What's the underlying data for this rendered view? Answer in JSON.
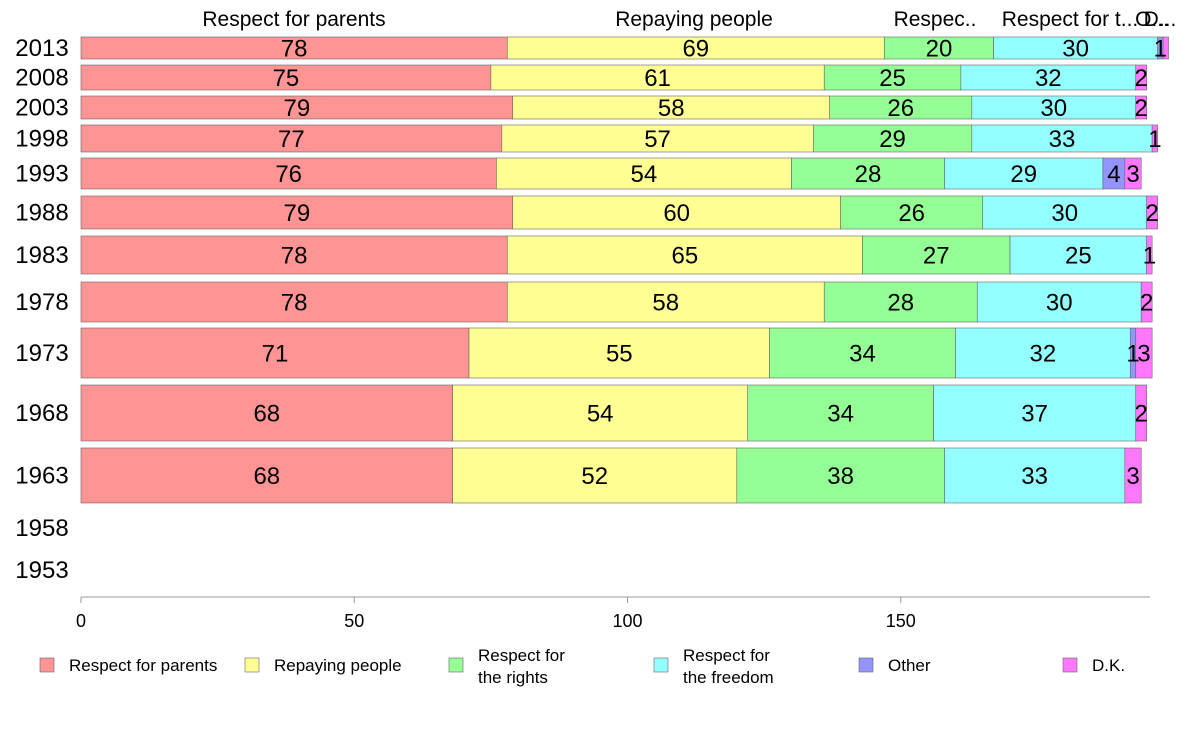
{
  "chart_data": {
    "type": "bar",
    "orientation": "horizontal",
    "stacked": true,
    "categories": [
      "2013",
      "2008",
      "2003",
      "1998",
      "1993",
      "1988",
      "1983",
      "1978",
      "1973",
      "1968",
      "1963",
      "1958",
      "1953"
    ],
    "series": [
      {
        "name": "Respect for parents",
        "color": "#ff9494",
        "values": [
          78,
          75,
          79,
          77,
          76,
          79,
          78,
          78,
          71,
          68,
          68,
          null,
          null
        ]
      },
      {
        "name": "Repaying people",
        "color": "#ffff94",
        "values": [
          69,
          61,
          58,
          57,
          54,
          60,
          65,
          58,
          55,
          54,
          52,
          null,
          null
        ]
      },
      {
        "name": "Respect for the rights",
        "color": "#94ff94",
        "values": [
          20,
          25,
          26,
          29,
          28,
          26,
          27,
          28,
          34,
          34,
          38,
          null,
          null
        ]
      },
      {
        "name": "Respect for the freedom",
        "color": "#94ffff",
        "values": [
          30,
          32,
          30,
          33,
          29,
          30,
          25,
          30,
          32,
          37,
          33,
          null,
          null
        ]
      },
      {
        "name": "Other",
        "color": "#9494ff",
        "values": [
          1,
          0,
          0,
          0,
          4,
          0,
          0,
          0,
          1,
          0,
          0,
          null,
          null
        ]
      },
      {
        "name": "D.K.",
        "color": "#ff77ff",
        "values": [
          1,
          2,
          2,
          1,
          3,
          2,
          1,
          2,
          3,
          2,
          3,
          null,
          null
        ]
      }
    ],
    "segment_labels": [
      [
        "78",
        "69",
        "20",
        "30",
        "1",
        ""
      ],
      [
        "75",
        "61",
        "25",
        "32",
        "",
        "2"
      ],
      [
        "79",
        "58",
        "26",
        "30",
        "",
        "2"
      ],
      [
        "77",
        "57",
        "29",
        "33",
        "",
        "1"
      ],
      [
        "76",
        "54",
        "28",
        "29",
        "4",
        "3"
      ],
      [
        "79",
        "60",
        "26",
        "30",
        "",
        "2"
      ],
      [
        "78",
        "65",
        "27",
        "25",
        "",
        "1"
      ],
      [
        "78",
        "58",
        "28",
        "30",
        "",
        "2"
      ],
      [
        "71",
        "55",
        "34",
        "32",
        "1",
        "3"
      ],
      [
        "68",
        "54",
        "34",
        "37",
        "",
        "2"
      ],
      [
        "68",
        "52",
        "38",
        "33",
        "",
        "3"
      ],
      [
        "",
        "",
        "",
        "",
        "",
        ""
      ],
      [
        "",
        "",
        "",
        "",
        "",
        ""
      ]
    ],
    "top_labels": [
      "Respect for parents",
      "Repaying people",
      "Respec..",
      "Respect for t...",
      "O...",
      "D..."
    ],
    "x_ticks": [
      "0",
      "50",
      "100",
      "150"
    ],
    "xlim": [
      0,
      200
    ],
    "legend": {
      "placement": "bottom",
      "lines": [
        [
          "Respect for parents"
        ],
        [
          "Repaying people"
        ],
        [
          "Respect for",
          "the rights"
        ],
        [
          "Respect for",
          "the freedom"
        ],
        [
          "Other"
        ],
        [
          "D.K."
        ]
      ]
    }
  }
}
